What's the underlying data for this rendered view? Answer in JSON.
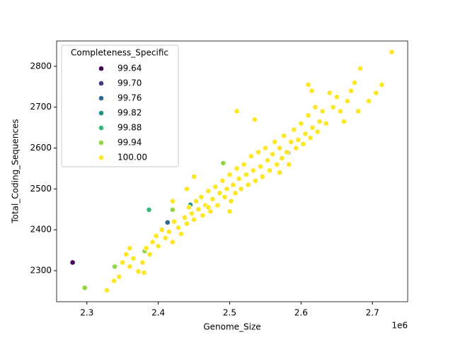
{
  "chart_data": {
    "type": "scatter",
    "x_label": "Genome_Size",
    "y_label": "Total_Coding_Sequences",
    "x_offset_label": "1e6",
    "legend_title": "Completeness_Specific",
    "legend_position": "upper left",
    "xlim": [
      2.2576,
      2.7494
    ],
    "xticks": [
      2.3,
      2.4,
      2.5,
      2.6,
      2.7
    ],
    "ylim": [
      2224,
      2862
    ],
    "yticks": [
      2300,
      2400,
      2500,
      2600,
      2700,
      2800
    ],
    "series": [
      {
        "name": "99.64",
        "color": "#440154",
        "x": [
          2.28
        ],
        "values": [
          2320
        ]
      },
      {
        "name": "99.70",
        "color": "#443983",
        "x": [],
        "values": []
      },
      {
        "name": "99.76",
        "color": "#31688e",
        "x": [
          2.413
        ],
        "values": [
          2418
        ]
      },
      {
        "name": "99.82",
        "color": "#21918c",
        "x": [
          2.445
        ],
        "values": [
          2461
        ]
      },
      {
        "name": "99.88",
        "color": "#35b779",
        "x": [
          2.387
        ],
        "values": [
          2449
        ]
      },
      {
        "name": "99.94",
        "color": "#90d743",
        "x": [
          2.297,
          2.339,
          2.42,
          2.491,
          2.381,
          2.582
        ],
        "values": [
          2258,
          2310,
          2449,
          2563,
          2348,
          2589
        ]
      },
      {
        "name": "100.00",
        "color": "#fde725",
        "x": [
          2.328,
          2.338,
          2.345,
          2.35,
          2.355,
          2.36,
          2.365,
          2.372,
          2.378,
          2.383,
          2.388,
          2.392,
          2.397,
          2.4,
          2.405,
          2.41,
          2.415,
          2.42,
          2.422,
          2.428,
          2.432,
          2.437,
          2.44,
          2.443,
          2.447,
          2.45,
          2.453,
          2.456,
          2.46,
          2.462,
          2.466,
          2.47,
          2.473,
          2.476,
          2.48,
          2.483,
          2.486,
          2.49,
          2.493,
          2.496,
          2.5,
          2.502,
          2.505,
          2.508,
          2.51,
          2.513,
          2.516,
          2.52,
          2.523,
          2.526,
          2.53,
          2.533,
          2.536,
          2.54,
          2.543,
          2.546,
          2.55,
          2.553,
          2.556,
          2.56,
          2.563,
          2.566,
          2.57,
          2.573,
          2.576,
          2.58,
          2.583,
          2.586,
          2.59,
          2.593,
          2.596,
          2.6,
          2.603,
          2.606,
          2.61,
          2.613,
          2.616,
          2.62,
          2.623,
          2.626,
          2.63,
          2.635,
          2.64,
          2.645,
          2.65,
          2.655,
          2.66,
          2.665,
          2.67,
          2.675,
          2.68,
          2.683,
          2.695,
          2.705,
          2.713,
          2.727,
          2.51,
          2.535,
          2.61,
          2.615,
          2.47,
          2.44,
          2.45,
          2.38,
          2.36,
          2.42,
          2.5,
          2.57
        ],
        "values": [
          2252,
          2275,
          2285,
          2320,
          2340,
          2310,
          2330,
          2298,
          2320,
          2355,
          2340,
          2370,
          2385,
          2360,
          2400,
          2380,
          2395,
          2370,
          2420,
          2405,
          2390,
          2430,
          2415,
          2455,
          2440,
          2425,
          2470,
          2450,
          2480,
          2435,
          2460,
          2495,
          2445,
          2475,
          2505,
          2460,
          2490,
          2520,
          2480,
          2500,
          2535,
          2470,
          2510,
          2490,
          2550,
          2525,
          2500,
          2560,
          2535,
          2510,
          2580,
          2545,
          2520,
          2590,
          2555,
          2530,
          2600,
          2570,
          2545,
          2585,
          2615,
          2560,
          2600,
          2575,
          2630,
          2590,
          2560,
          2615,
          2645,
          2600,
          2620,
          2660,
          2610,
          2635,
          2680,
          2625,
          2650,
          2700,
          2640,
          2665,
          2690,
          2660,
          2735,
          2700,
          2725,
          2690,
          2665,
          2715,
          2740,
          2760,
          2690,
          2795,
          2715,
          2735,
          2755,
          2835,
          2690,
          2670,
          2755,
          2740,
          2455,
          2500,
          2530,
          2295,
          2355,
          2470,
          2445,
          2540
        ]
      }
    ]
  }
}
